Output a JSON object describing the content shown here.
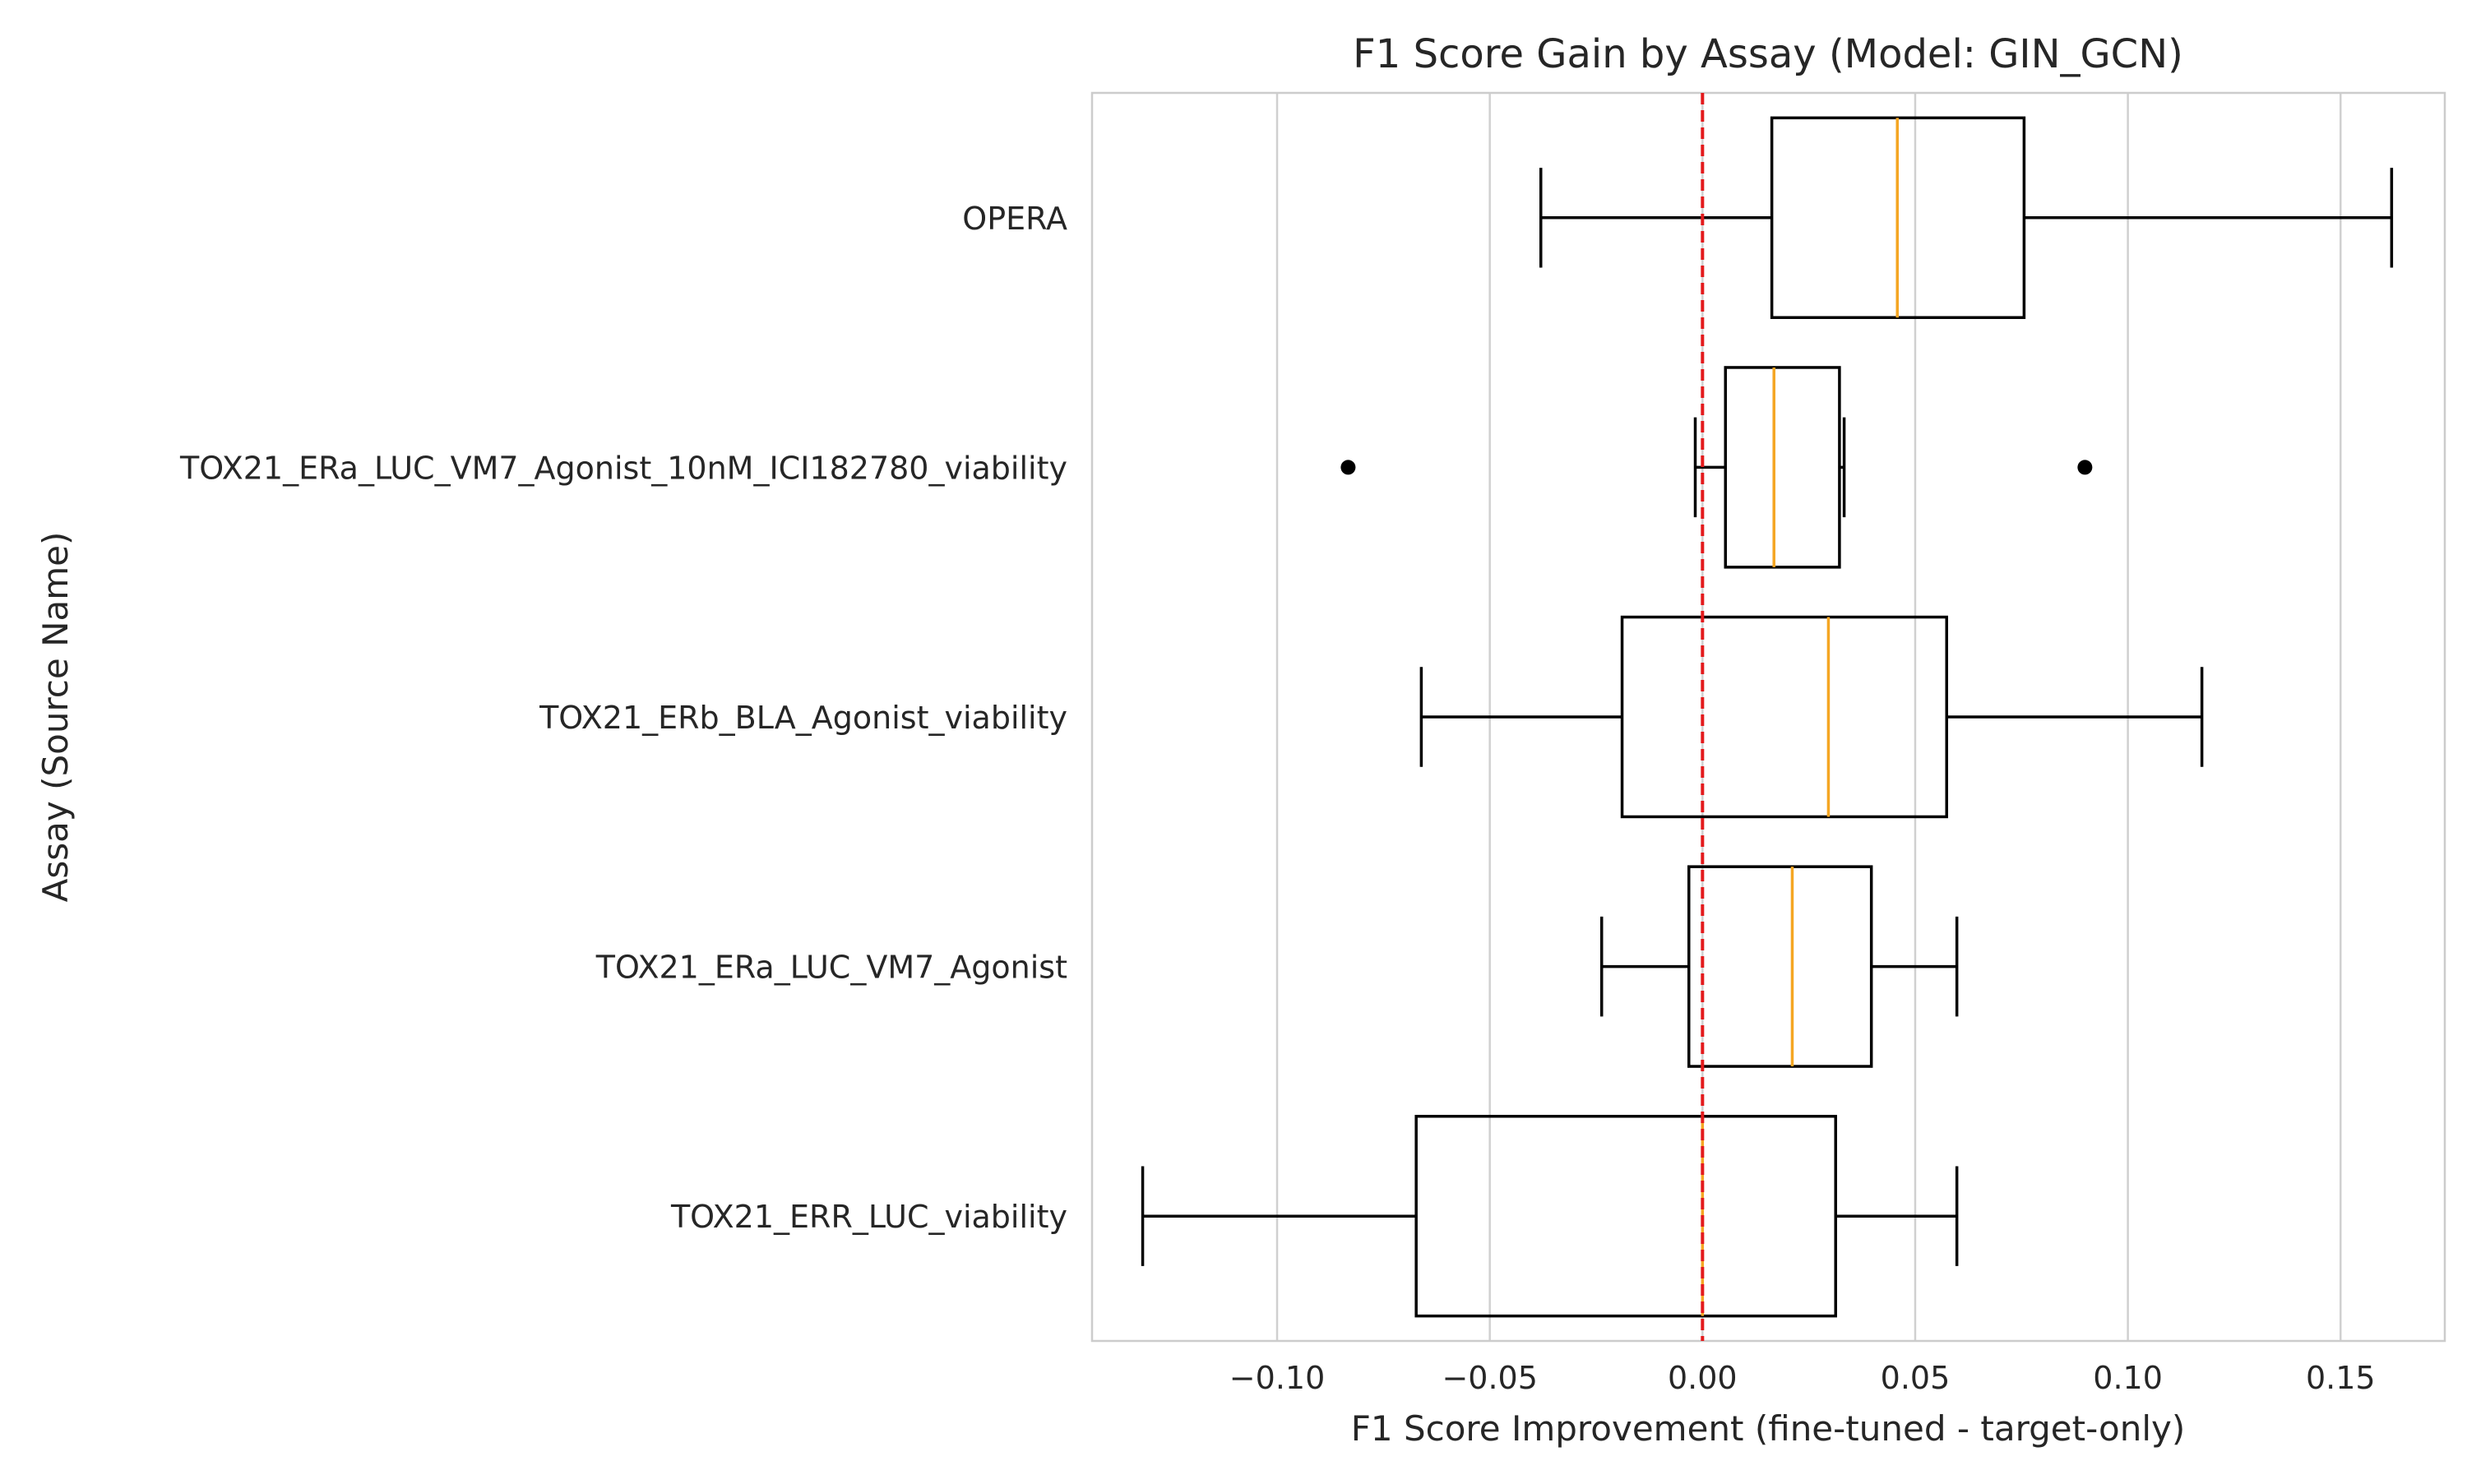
{
  "chart_data": {
    "type": "boxplot",
    "orientation": "horizontal",
    "title": "F1 Score Gain by Assay (Model: GIN_GCN)",
    "xlabel": "F1 Score Improvement (fine-tuned - target-only)",
    "ylabel": "Assay (Source Name)",
    "xlim": [
      -0.1435,
      0.1745
    ],
    "xticks": [
      -0.1,
      -0.05,
      0.0,
      0.05,
      0.1,
      0.15
    ],
    "xtick_labels": [
      "−0.10",
      "−0.05",
      "0.00",
      "0.05",
      "0.10",
      "0.15"
    ],
    "grid": "vertical",
    "reference_line": {
      "x": 0.0,
      "color": "#e31a1c",
      "style": "dashed"
    },
    "colors": {
      "box": "#000000",
      "median": "#f5a623",
      "grid": "#d0d0d0",
      "frame": "#cccccc",
      "text": "#262626"
    },
    "categories": [
      "OPERA",
      "TOX21_ERa_LUC_VM7_Agonist_10nM_ICI182780_viability",
      "TOX21_ERb_BLA_Agonist_viability",
      "TOX21_ERa_LUC_VM7_Agonist",
      "TOX21_ERR_LUC_viability"
    ],
    "boxes": [
      {
        "whisker_low": -0.038,
        "q1": 0.0163,
        "median": 0.0458,
        "q3": 0.0756,
        "whisker_high": 0.162,
        "outliers": []
      },
      {
        "whisker_low": -0.0017,
        "q1": 0.0054,
        "median": 0.0168,
        "q3": 0.0322,
        "whisker_high": 0.0333,
        "outliers": [
          -0.0833,
          0.0899
        ]
      },
      {
        "whisker_low": -0.0661,
        "q1": -0.0189,
        "median": 0.0296,
        "q3": 0.0574,
        "whisker_high": 0.1174,
        "outliers": []
      },
      {
        "whisker_low": -0.0237,
        "q1": -0.0032,
        "median": 0.0211,
        "q3": 0.0397,
        "whisker_high": 0.0598,
        "outliers": []
      },
      {
        "whisker_low": -0.1316,
        "q1": -0.0673,
        "median": 0.0,
        "q3": 0.0313,
        "whisker_high": 0.0598,
        "outliers": []
      }
    ]
  }
}
